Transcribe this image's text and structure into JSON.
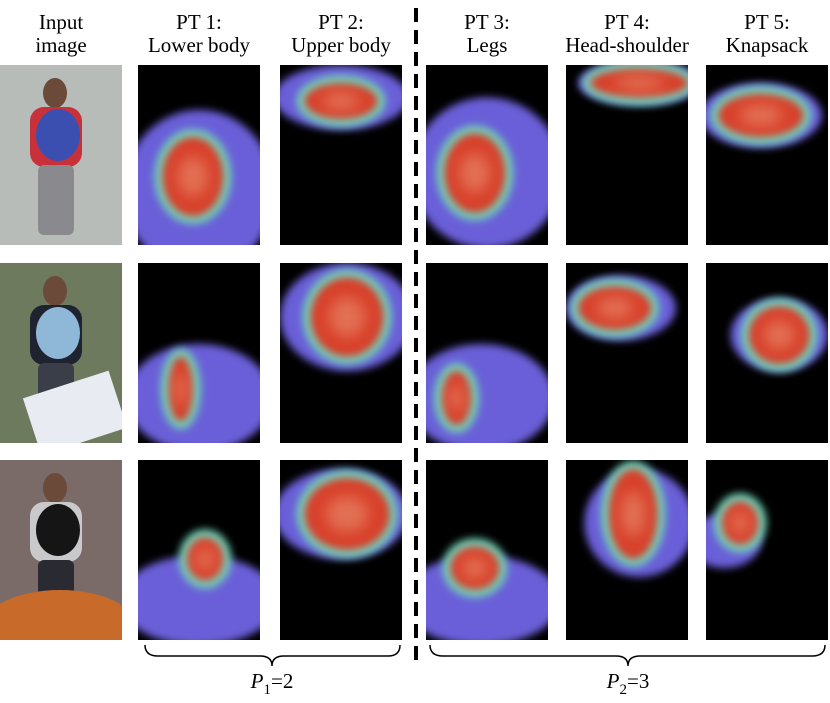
{
  "header": {
    "columns": [
      {
        "line1": "Input",
        "line2": "image"
      },
      {
        "line1": "PT 1:",
        "line2": "Lower body"
      },
      {
        "line1": "PT 2:",
        "line2": "Upper body"
      },
      {
        "line1": "PT 3:",
        "line2": "Legs"
      },
      {
        "line1": "PT 4:",
        "line2": "Head-shoulder"
      },
      {
        "line1": "PT 5:",
        "line2": "Knapsack"
      }
    ]
  },
  "groups": [
    {
      "symbol": "P",
      "subscript": "1",
      "equals": "=2"
    },
    {
      "symbol": "P",
      "subscript": "2",
      "equals": "=3"
    }
  ]
}
